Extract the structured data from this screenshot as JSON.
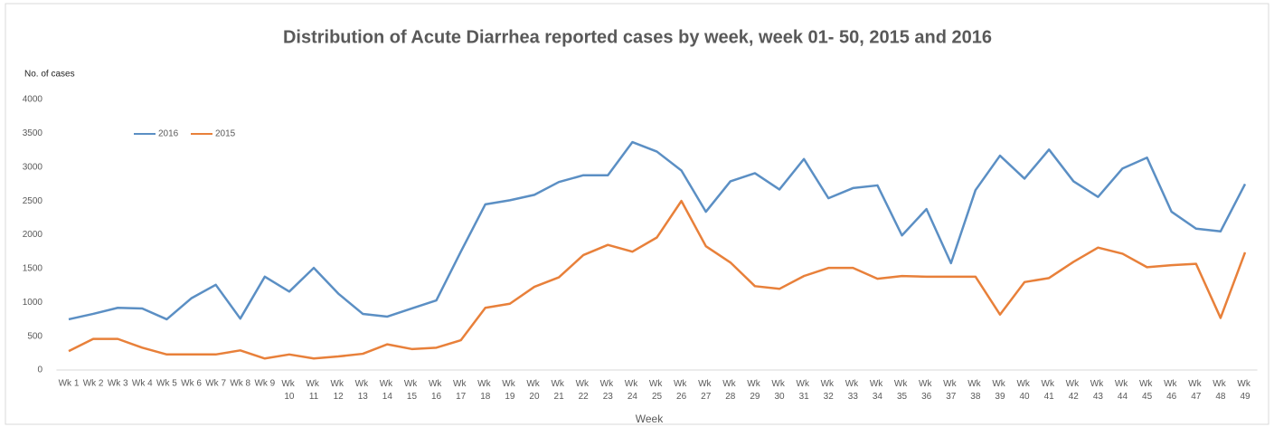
{
  "chart_data": {
    "type": "line",
    "title": "Distribution of Acute Diarrhea reported cases by week, week 01- 50, 2015 and 2016",
    "y_label": "No. of cases",
    "x_label": "Week",
    "categories": [
      "Wk 1",
      "Wk 2",
      "Wk 3",
      "Wk 4",
      "Wk 5",
      "Wk 6",
      "Wk 7",
      "Wk 8",
      "Wk 9",
      "Wk 10",
      "Wk 11",
      "Wk 12",
      "Wk 13",
      "Wk 14",
      "Wk 15",
      "Wk 16",
      "Wk 17",
      "Wk 18",
      "Wk 19",
      "Wk 20",
      "Wk 21",
      "Wk 22",
      "Wk 23",
      "Wk 24",
      "Wk 25",
      "Wk 26",
      "Wk 27",
      "Wk 28",
      "Wk 29",
      "Wk 30",
      "Wk 31",
      "Wk 32",
      "Wk 33",
      "Wk 34",
      "Wk 35",
      "Wk 36",
      "Wk 37",
      "Wk 38",
      "Wk 39",
      "Wk 40",
      "Wk 41",
      "Wk 42",
      "Wk 43",
      "Wk 44",
      "Wk 45",
      "Wk 46",
      "Wk 47",
      "Wk 48",
      "Wk 49"
    ],
    "series": [
      {
        "name": "2016",
        "color": "#5b8fc4",
        "values": [
          750,
          830,
          920,
          910,
          750,
          1060,
          1260,
          760,
          1380,
          1160,
          1510,
          1130,
          830,
          790,
          910,
          1030,
          1750,
          2450,
          2510,
          2590,
          2780,
          2880,
          2880,
          3370,
          3230,
          2950,
          2340,
          2790,
          2910,
          2670,
          3120,
          2540,
          2690,
          2730,
          1990,
          2380,
          1580,
          2660,
          3170,
          2830,
          3260,
          2790,
          2560,
          2980,
          3140,
          2340,
          2090,
          2050,
          2750
        ]
      },
      {
        "name": "2015",
        "color": "#e8803a",
        "values": [
          280,
          460,
          460,
          330,
          230,
          230,
          230,
          290,
          170,
          230,
          170,
          200,
          240,
          380,
          310,
          330,
          440,
          920,
          980,
          1230,
          1370,
          1700,
          1850,
          1750,
          1960,
          2500,
          1830,
          1590,
          1240,
          1200,
          1390,
          1510,
          1510,
          1350,
          1390,
          1380,
          1380,
          1380,
          820,
          1300,
          1360,
          1600,
          1810,
          1720,
          1520,
          1550,
          1570,
          770,
          1740
        ]
      }
    ],
    "ylim": [
      0,
      4000
    ],
    "yticks": [
      0,
      500,
      1000,
      1500,
      2000,
      2500,
      3000,
      3500,
      4000
    ],
    "grid": false,
    "legend": "top-left"
  }
}
